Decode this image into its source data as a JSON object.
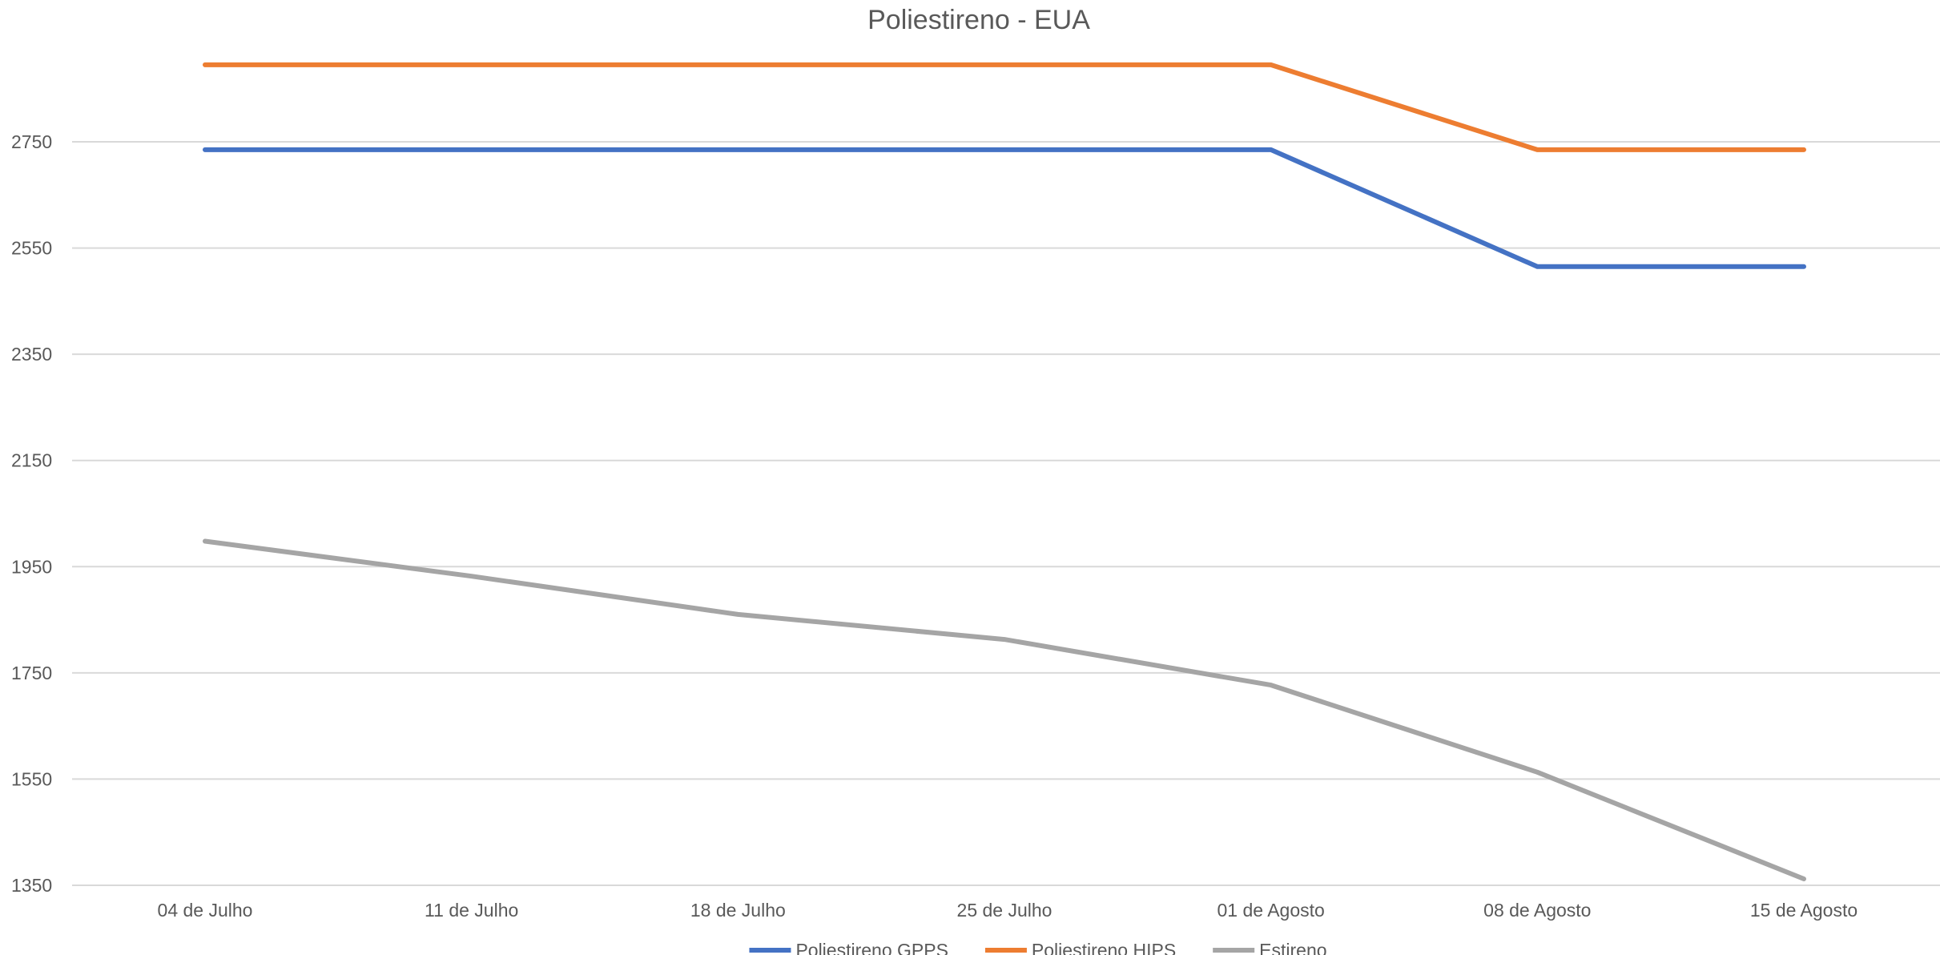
{
  "chart_data": {
    "type": "line",
    "title": "Poliestireno - EUA",
    "xlabel": "",
    "ylabel": "",
    "categories": [
      "04 de Julho",
      "11 de Julho",
      "18 de Julho",
      "25 de Julho",
      "01 de Agosto",
      "08 de Agosto",
      "15 de Agosto"
    ],
    "y_ticks": [
      1350,
      1550,
      1750,
      1950,
      2150,
      2350,
      2550,
      2750
    ],
    "ylim": [
      1350,
      2950
    ],
    "grid": true,
    "legend_position": "bottom",
    "series": [
      {
        "name": "Poliestireno GPPS",
        "color": "#4472c4",
        "values": [
          2735,
          2735,
          2735,
          2735,
          2735,
          2515,
          2515
        ]
      },
      {
        "name": "Poliestireno HIPS",
        "color": "#ed7d31",
        "values": [
          2895,
          2895,
          2895,
          2895,
          2895,
          2735,
          2735
        ]
      },
      {
        "name": "Estireno",
        "color": "#a5a5a5",
        "values": [
          1998,
          1932,
          1860,
          1813,
          1727,
          1563,
          1362
        ]
      }
    ]
  }
}
